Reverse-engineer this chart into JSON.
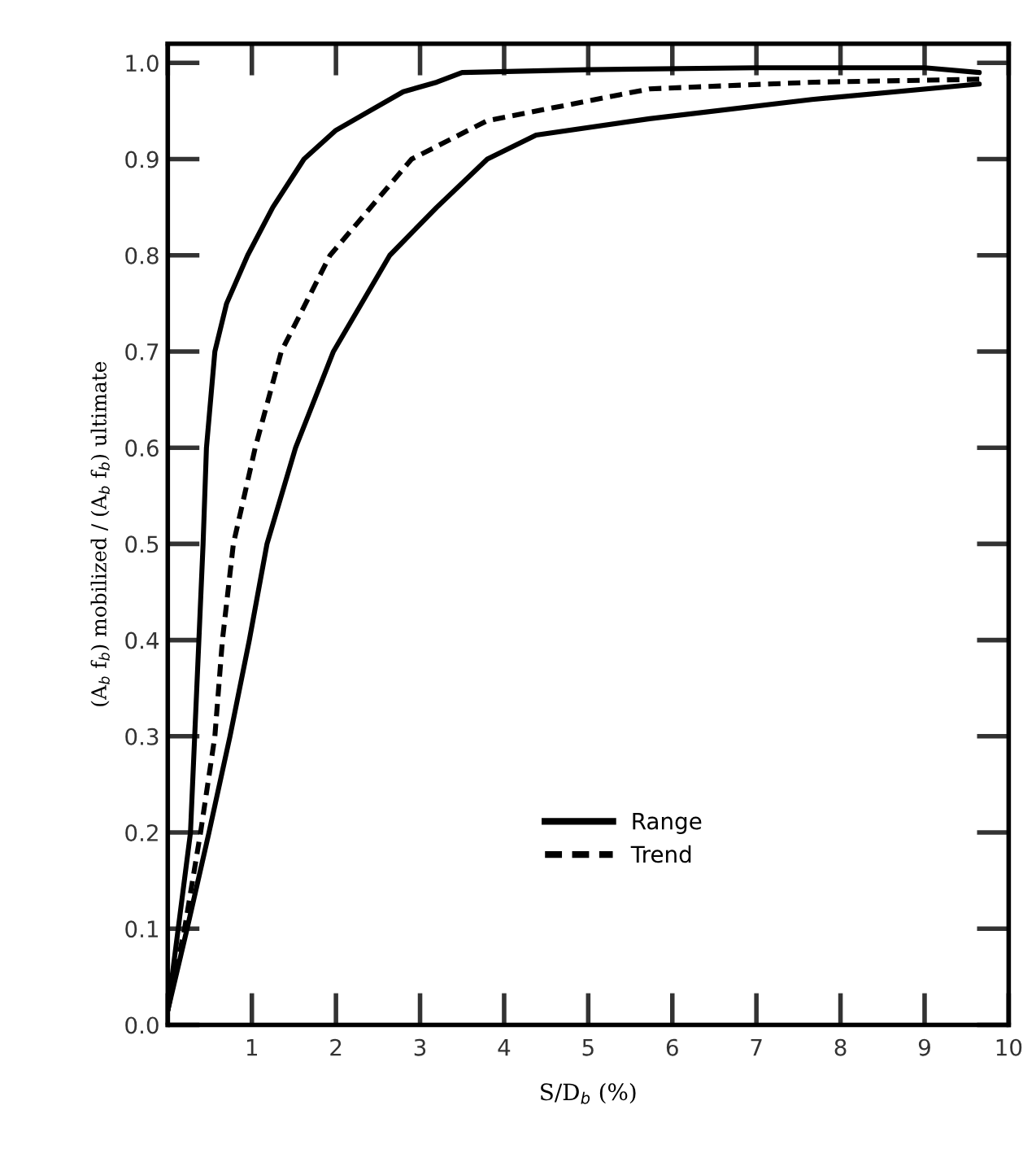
{
  "chart_data": {
    "type": "line",
    "xlabel": "S/D$_{b}$ (%)",
    "ylabel": "(A$_{b}$ f$_{b}$) mobilized / (A$_{b}$ f$_{b}$) ultimate",
    "xlim": [
      0,
      10
    ],
    "ylim": [
      0,
      1.02
    ],
    "xticks": [
      {
        "value": 0,
        "label": null
      },
      1,
      2,
      3,
      4,
      5,
      6,
      7,
      8,
      9,
      10
    ],
    "yticks": [
      {
        "value": 0.0,
        "label": "0.0"
      },
      {
        "value": 0.1,
        "label": "0.1"
      },
      {
        "value": 0.2,
        "label": "0.2"
      },
      {
        "value": 0.3,
        "label": "0.3"
      },
      {
        "value": 0.4,
        "label": "0.4"
      },
      {
        "value": 0.5,
        "label": "0.5"
      },
      {
        "value": 0.6,
        "label": "0.6"
      },
      {
        "value": 0.7,
        "label": "0.7"
      },
      {
        "value": 0.8,
        "label": "0.8"
      },
      {
        "value": 0.9,
        "label": "0.9"
      },
      {
        "value": 1.0,
        "label": "1.0"
      }
    ],
    "grid": false,
    "legend": "bottom right",
    "marker": "none",
    "series": [
      {
        "name": "Range",
        "color": "#000000",
        "line_style": "solid",
        "x": [
          0,
          0.27,
          0.42,
          0.46,
          0.56,
          0.7,
          0.95,
          1.25,
          1.62,
          2.0,
          2.4,
          2.8,
          3.2,
          3.5,
          5,
          7,
          9,
          9.65
        ],
        "values": [
          0.015,
          0.2,
          0.5,
          0.6,
          0.7,
          0.75,
          0.8,
          0.85,
          0.9,
          0.93,
          0.95,
          0.97,
          0.98,
          0.99,
          0.993,
          0.995,
          0.995,
          0.99
        ]
      },
      {
        "name": "Trend",
        "color": "#000000",
        "line_style": "dashed",
        "x": [
          0,
          0.2,
          0.39,
          0.56,
          0.65,
          0.78,
          1.04,
          1.35,
          1.93,
          2.9,
          3.8,
          5.73,
          7.7,
          9.65
        ],
        "values": [
          0.015,
          0.1,
          0.2,
          0.3,
          0.4,
          0.5,
          0.6,
          0.7,
          0.8,
          0.9,
          0.94,
          0.973,
          0.98,
          0.983
        ]
      },
      {
        "color": "#000000",
        "line_style": "solid",
        "x": [
          0,
          0.23,
          0.49,
          0.74,
          0.97,
          1.18,
          1.52,
          1.97,
          2.64,
          3.2,
          3.8,
          4.38,
          5.73,
          7.66,
          9.65
        ],
        "values": [
          0.015,
          0.1,
          0.2,
          0.3,
          0.4,
          0.5,
          0.6,
          0.7,
          0.8,
          0.85,
          0.9,
          0.925,
          0.942,
          0.962,
          0.978
        ]
      }
    ]
  }
}
